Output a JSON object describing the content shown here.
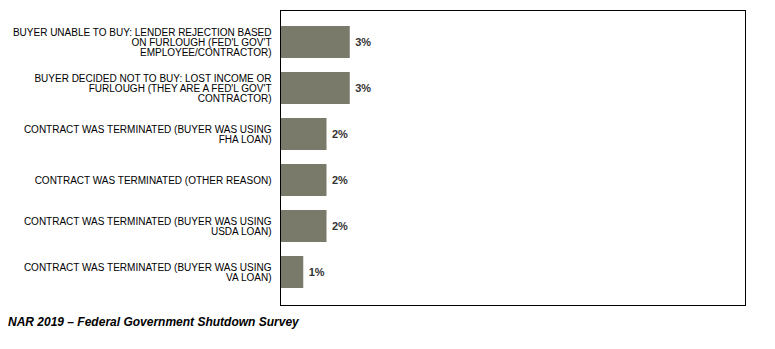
{
  "chart_data": {
    "type": "bar",
    "orientation": "horizontal",
    "categories": [
      "BUYER UNABLE TO BUY: LENDER REJECTION BASED\nON FURLOUGH (FED'L GOV'T\nEMPLOYEE/CONTRACTOR)",
      "BUYER DECIDED NOT TO BUY: LOST INCOME OR\nFURLOUGH (THEY ARE A FED'L GOV'T\nCONTRACTOR)",
      "CONTRACT WAS TERMINATED (BUYER WAS USING\nFHA LOAN)",
      "CONTRACT WAS TERMINATED (OTHER REASON)",
      "CONTRACT WAS TERMINATED (BUYER WAS USING\nUSDA LOAN)",
      "CONTRACT WAS TERMINATED (BUYER WAS USING\nVA LOAN)"
    ],
    "values": [
      3,
      3,
      2,
      2,
      2,
      1
    ],
    "value_labels": [
      "3%",
      "3%",
      "2%",
      "2%",
      "2%",
      "1%"
    ],
    "data_labels": true,
    "color": "#7a7a6a",
    "xlim": [
      0,
      20
    ],
    "tick_labels": "y",
    "caption": "NAR 2019 – Federal Government Shutdown Survey"
  }
}
